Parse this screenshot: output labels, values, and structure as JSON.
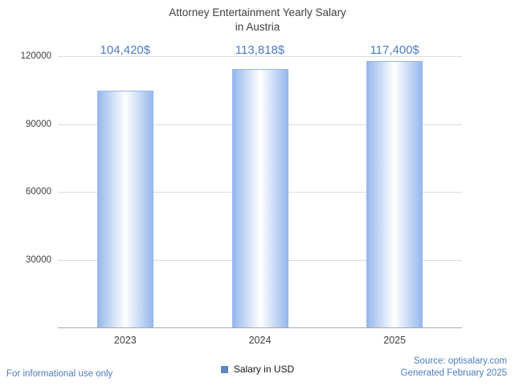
{
  "title": {
    "line1": "Attorney Entertainment Yearly Salary",
    "line2": "in Austria"
  },
  "chart_data": {
    "type": "bar",
    "title": "Attorney Entertainment Yearly Salary in Austria",
    "categories": [
      "2023",
      "2024",
      "2025"
    ],
    "values": [
      104420,
      113818,
      117400
    ],
    "value_labels": [
      "104,420$",
      "113,818$",
      "117,400$"
    ],
    "xlabel": "",
    "ylabel": "",
    "ylim": [
      0,
      120000
    ],
    "yticks": [
      120000,
      90000,
      60000,
      30000
    ],
    "ytick_labels": [
      "120000",
      "90000",
      "60000",
      "30000"
    ],
    "grid": true,
    "legend": {
      "label": "Salary in USD",
      "position": "bottom"
    },
    "series": [
      {
        "name": "Salary in USD",
        "values": [
          104420,
          113818,
          117400
        ]
      }
    ]
  },
  "footer": {
    "disclaimer": "For informational use only",
    "source": "Source: optisalary.com",
    "generated": "Generated February 2025"
  },
  "colors": {
    "accent_blue": "#4d7cc0",
    "bar_edge": "#94b6ec",
    "bar_center": "#ffffff",
    "legend_square": "#5b87c5",
    "gridline": "#dcdcdc",
    "title_text": "#3f3f3f"
  }
}
